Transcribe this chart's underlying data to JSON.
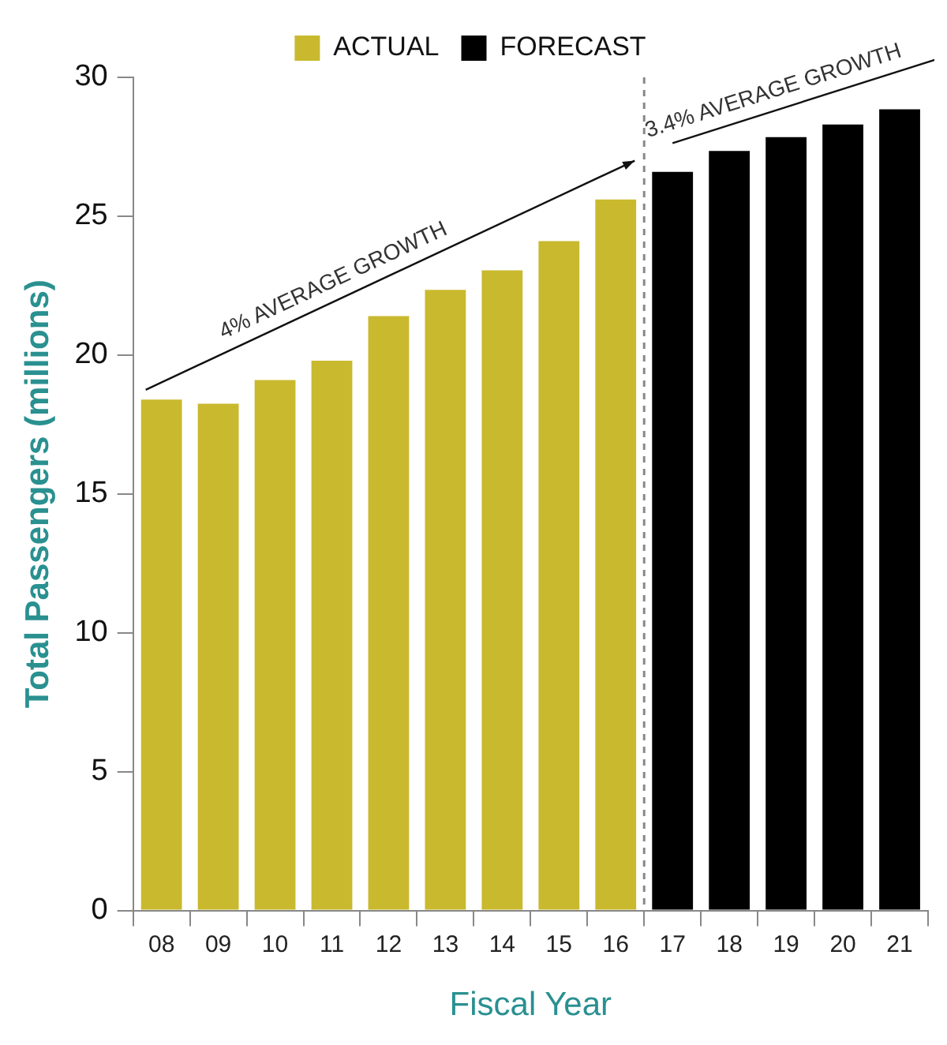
{
  "chart_data": {
    "type": "bar",
    "xlabel": "Fiscal Year",
    "ylabel": "Total Passengers (millions)",
    "categories": [
      "08",
      "09",
      "10",
      "11",
      "12",
      "13",
      "14",
      "15",
      "16",
      "17",
      "18",
      "19",
      "20",
      "21"
    ],
    "series": [
      {
        "name": "ACTUAL",
        "color": "#c9b92e",
        "values": [
          18.4,
          18.25,
          19.1,
          19.8,
          21.4,
          22.35,
          23.05,
          24.1,
          25.6,
          null,
          null,
          null,
          null,
          null
        ]
      },
      {
        "name": "FORECAST",
        "color": "#000000",
        "values": [
          null,
          null,
          null,
          null,
          null,
          null,
          null,
          null,
          null,
          26.6,
          27.35,
          27.85,
          28.3,
          28.85
        ]
      }
    ],
    "ylim": [
      0,
      30
    ],
    "yticks": [
      0,
      5,
      10,
      15,
      20,
      25,
      30
    ],
    "legend": "top",
    "annotations": [
      "4% AVERAGE GROWTH",
      "3.4% AVERAGE GROWTH"
    ]
  }
}
